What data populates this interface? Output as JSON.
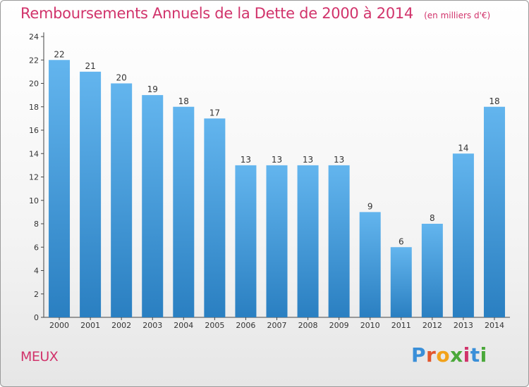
{
  "header": {
    "title": "Remboursements Annuels de la Dette de 2000 à 2014",
    "unit": "(en milliers d'€)"
  },
  "footer": {
    "commune": "MEUX",
    "logo_text": "Proxiti"
  },
  "colors": {
    "title": "#d1336b",
    "bar_top": "#63b5ee",
    "bar_bottom": "#2a7fc1",
    "logo_letters": [
      "#3a8fd8",
      "#e2562e",
      "#f2a21a",
      "#4aa83a",
      "#d1336b",
      "#3a8fd8",
      "#4aa83a"
    ]
  },
  "chart_data": {
    "type": "bar",
    "categories": [
      "2000",
      "2001",
      "2002",
      "2003",
      "2004",
      "2005",
      "2006",
      "2007",
      "2008",
      "2009",
      "2010",
      "2011",
      "2012",
      "2013",
      "2014"
    ],
    "values": [
      22,
      21,
      20,
      19,
      18,
      17,
      13,
      13,
      13,
      13,
      9,
      6,
      8,
      14,
      18
    ],
    "title": "Remboursements Annuels de la Dette de 2000 à 2014",
    "xlabel": "",
    "ylabel": "",
    "ylim": [
      0,
      24
    ],
    "yticks": [
      0,
      2,
      4,
      6,
      8,
      10,
      12,
      14,
      16,
      18,
      20,
      22,
      24
    ],
    "grid": false,
    "data_labels": true
  }
}
